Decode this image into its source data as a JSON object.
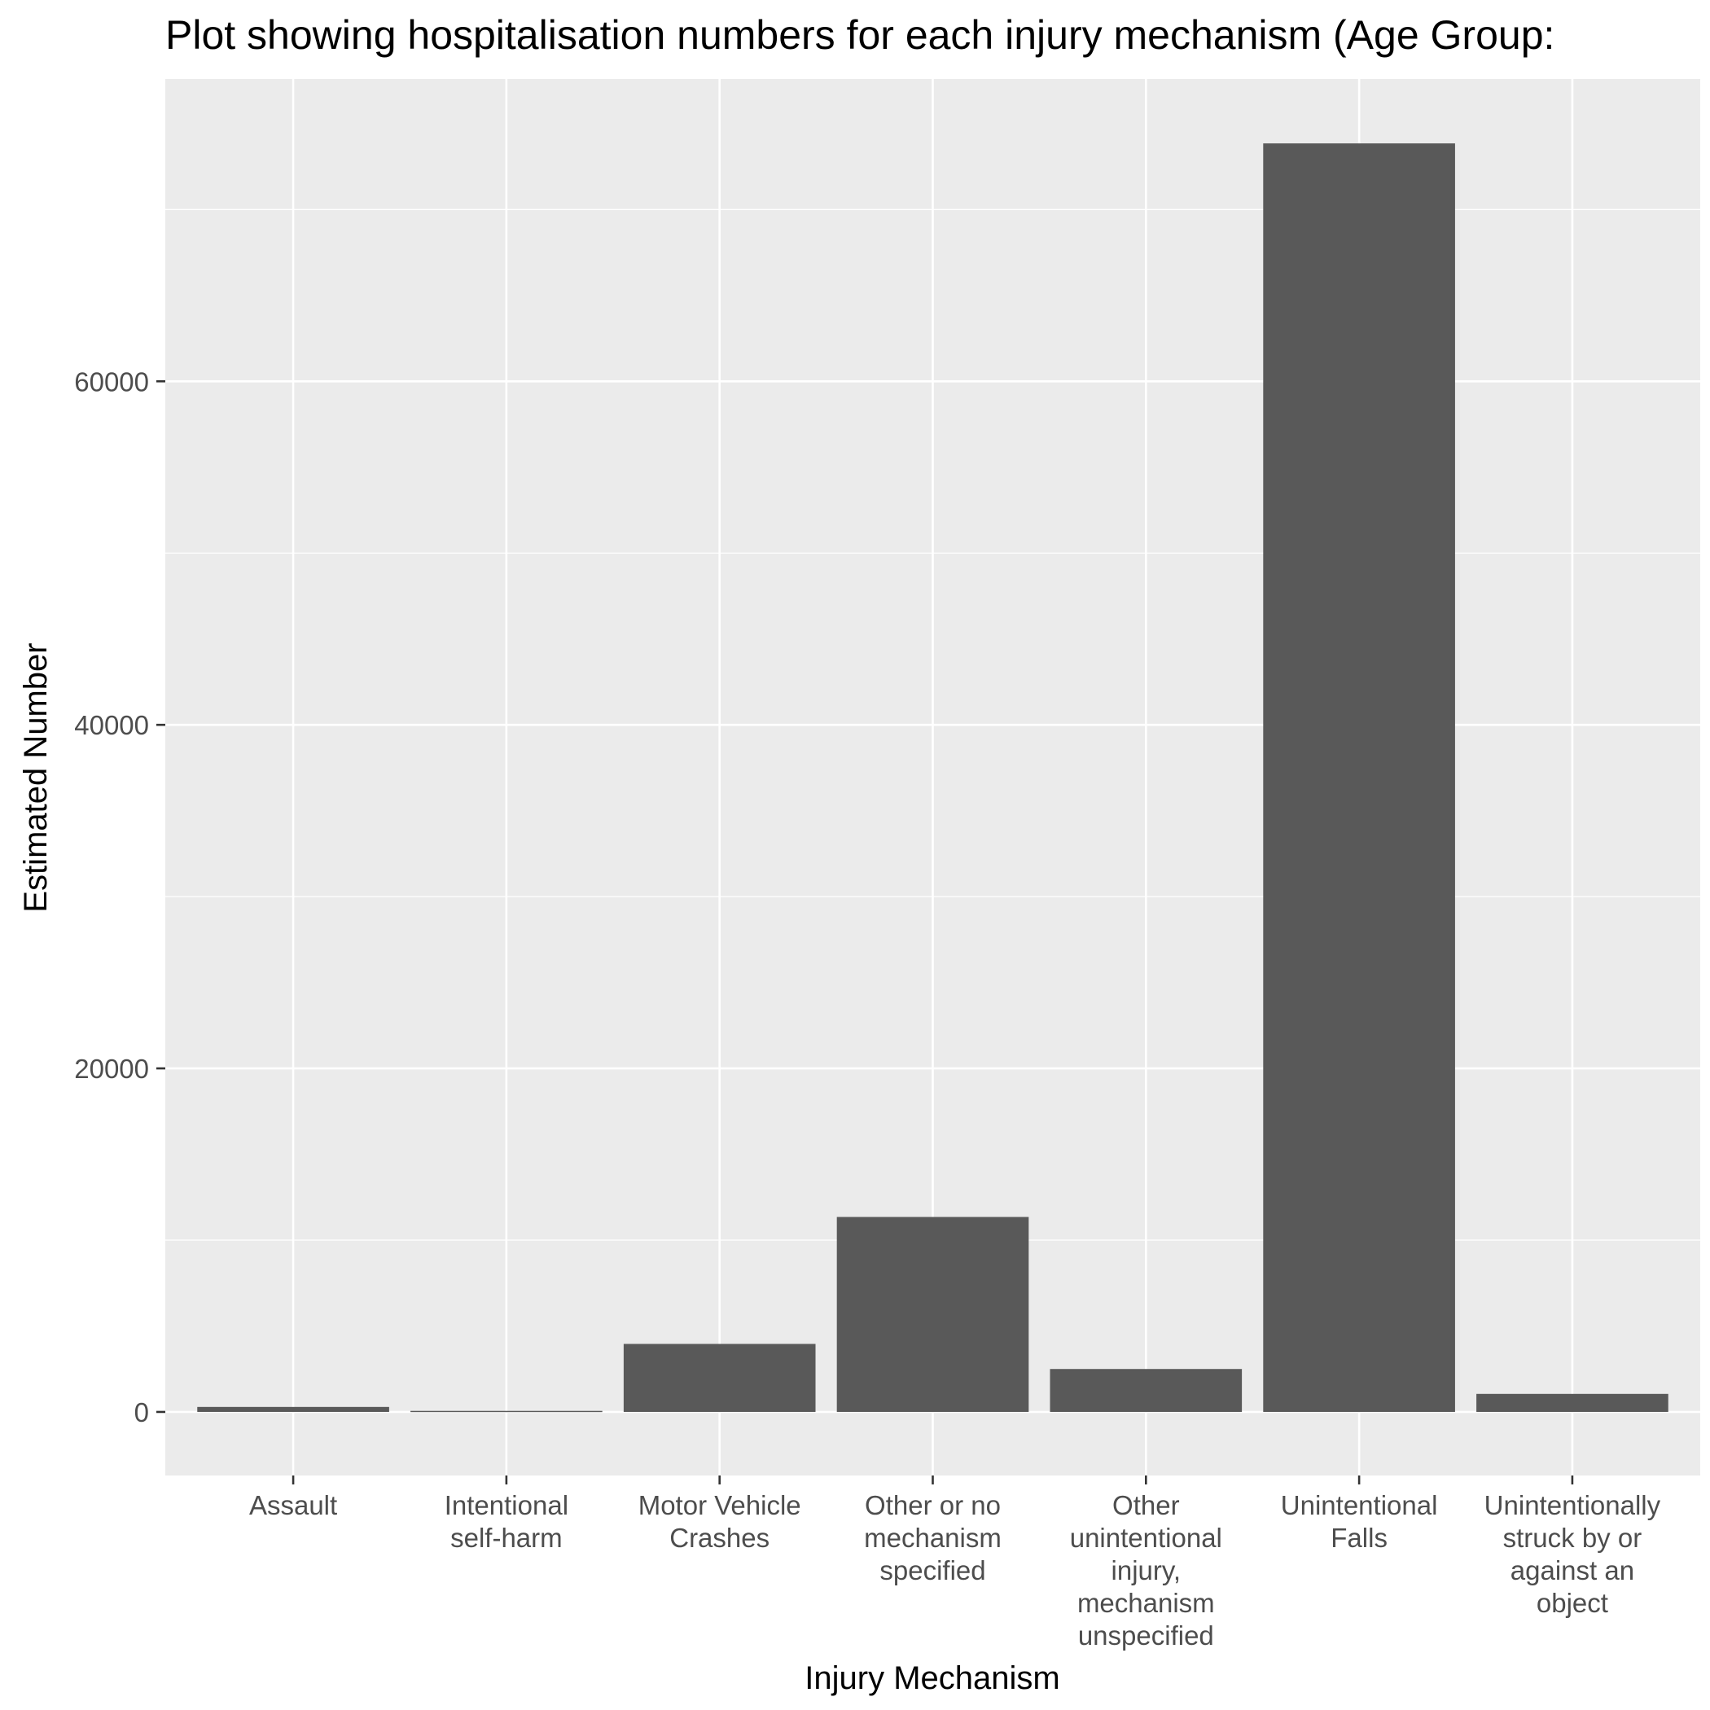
{
  "chart_data": {
    "type": "bar",
    "title": "Plot showing hospitalisation numbers for each injury mechanism (Age Group:",
    "xlabel": "Injury Mechanism",
    "ylabel": "Estimated Number",
    "categories": [
      "Assault",
      "Intentional self-harm",
      "Motor Vehicle Crashes",
      "Other or no mechanism specified",
      "Other unintentional injury, mechanism unspecified",
      "Unintentional Falls",
      "Unintentionally struck by or against an object"
    ],
    "category_label_lines": [
      [
        "Assault"
      ],
      [
        "Intentional",
        "self-harm"
      ],
      [
        "Motor Vehicle",
        "Crashes"
      ],
      [
        "Other or no",
        "mechanism",
        "specified"
      ],
      [
        "Other",
        "unintentional",
        "injury,",
        "mechanism",
        "unspecified"
      ],
      [
        "Unintentional",
        "Falls"
      ],
      [
        "Unintentionally",
        "struck by or",
        "against an",
        "object"
      ]
    ],
    "values": [
      290,
      60,
      3960,
      11350,
      2500,
      73850,
      1050
    ],
    "ylim": [
      -3700,
      77600
    ],
    "y_ticks": [
      0,
      20000,
      40000,
      60000
    ],
    "y_minor_ticks": [
      10000,
      30000,
      50000,
      70000
    ],
    "grid": true,
    "legend": "none"
  },
  "colors": {
    "panel_background": "#ebebeb",
    "grid": "#ffffff",
    "bar": "#595959",
    "tick_text": "#4d4d4d",
    "tick_mark": "#333333"
  }
}
